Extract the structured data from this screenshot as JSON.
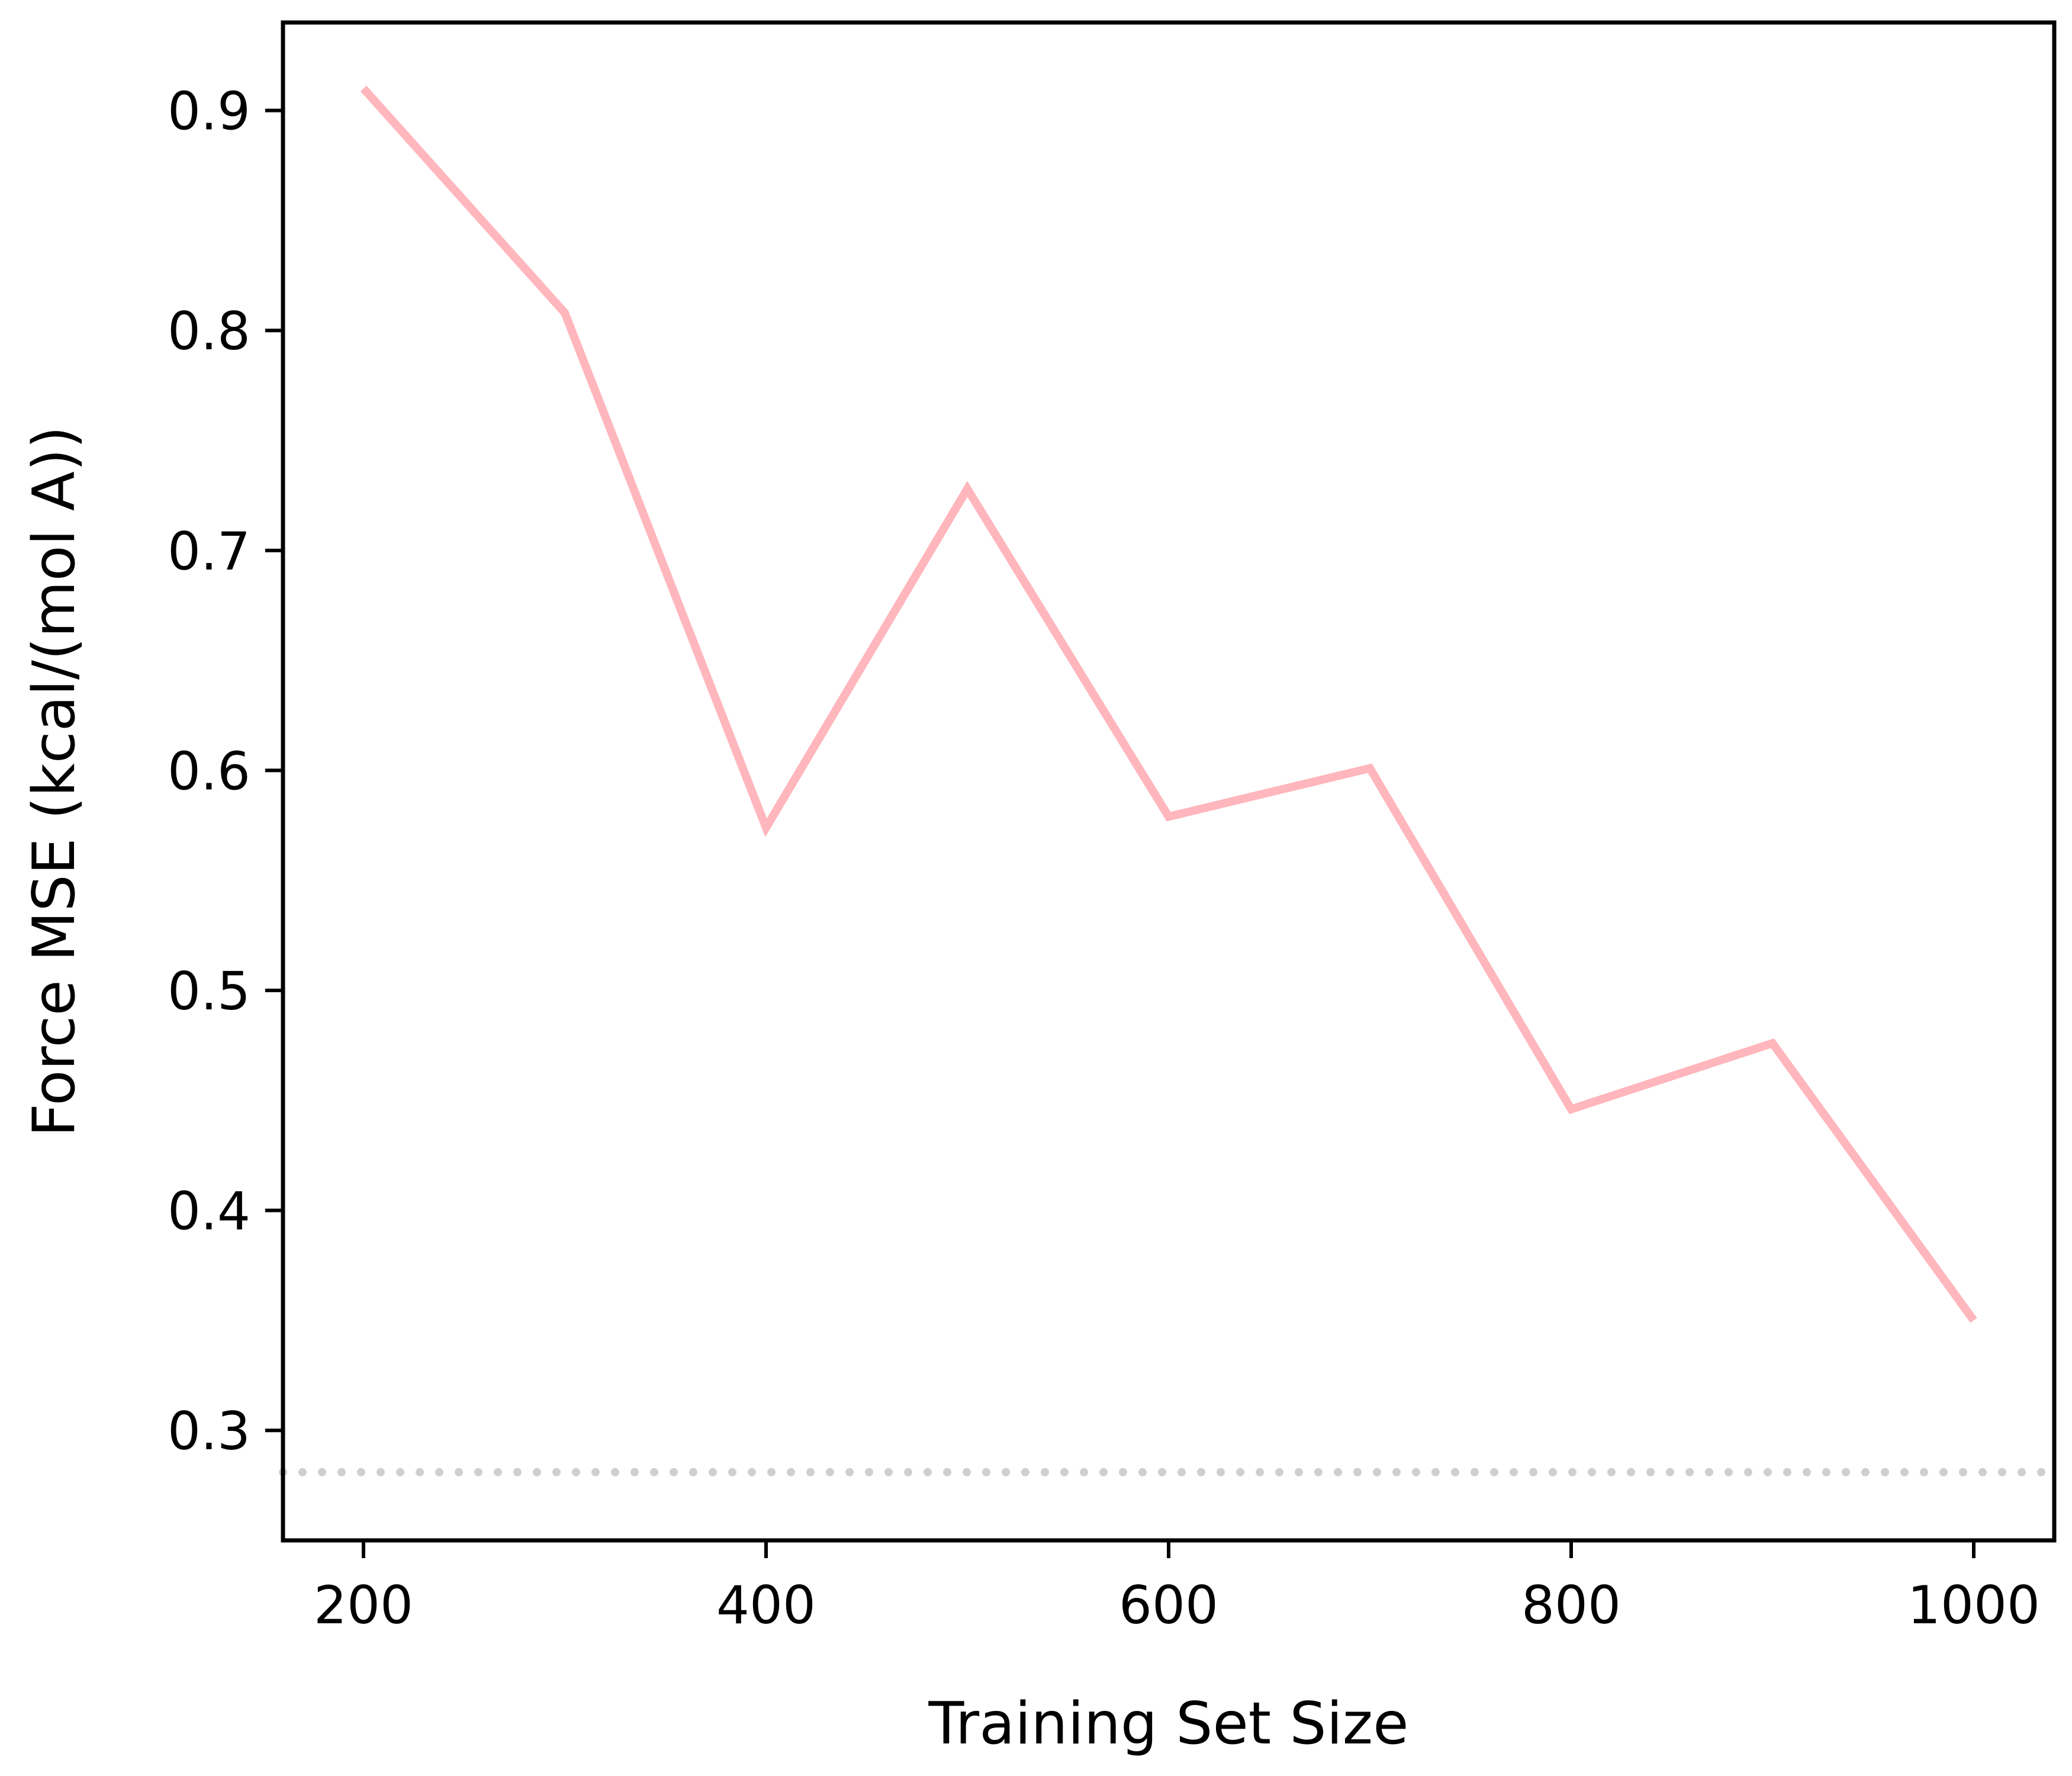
{
  "chart_data": {
    "type": "line",
    "title": "",
    "xlabel": "Training Set Size",
    "ylabel": "Force MSE (kcal/(mol A))",
    "xlim": [
      160,
      1040
    ],
    "ylim": [
      0.25,
      0.94
    ],
    "xticks": [
      200,
      400,
      600,
      800,
      1000
    ],
    "yticks": [
      0.3,
      0.4,
      0.5,
      0.6,
      0.7,
      0.8,
      0.9
    ],
    "x": [
      200,
      300,
      400,
      500,
      600,
      700,
      800,
      900,
      1000
    ],
    "series": [
      {
        "values": [
          0.91,
          0.808,
          0.574,
          0.728,
          0.579,
          0.601,
          0.446,
          0.476,
          0.35
        ],
        "color": "#ffb6bc"
      }
    ],
    "reference_line": {
      "y": 0.281,
      "style": "dotted",
      "color": "#cfcfcf"
    },
    "grid": false,
    "legend": "none"
  }
}
